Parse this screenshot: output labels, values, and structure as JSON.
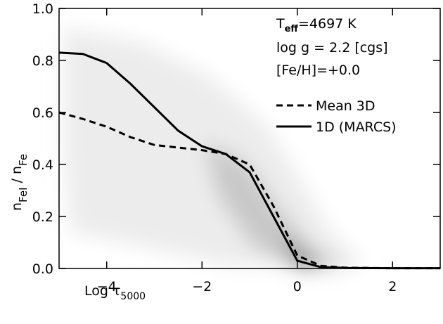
{
  "chart_data": {
    "type": "line",
    "xlabel": "Log τ",
    "xlabel_sub": "5000",
    "ylabel": "n",
    "ylabel_sub1": "FeI",
    "ylabel_mid": " / n",
    "ylabel_sub2": "Fe",
    "annotations": {
      "teff_main": "T",
      "teff_sub": "eff",
      "teff_rest": "=4697 K",
      "logg": "log g = 2.2 [cgs]",
      "feh": "[Fe/H]=+0.0"
    },
    "x": [
      -5,
      -4.5,
      -4,
      -3.5,
      -3,
      -2.5,
      -2,
      -1.5,
      -1,
      -0.5,
      0,
      0.5,
      1,
      2,
      3
    ],
    "series": [
      {
        "name": "Mean 3D",
        "color": "#000000",
        "linestyle": "dashed",
        "values": [
          0.6,
          0.575,
          0.545,
          0.505,
          0.475,
          0.465,
          0.455,
          0.44,
          0.4,
          0.24,
          0.05,
          0.01,
          0.003,
          0.001,
          0.001
        ]
      },
      {
        "name": "1D (MARCS)",
        "color": "#000000",
        "linestyle": "solid",
        "values": [
          0.83,
          0.825,
          0.79,
          0.71,
          0.62,
          0.53,
          0.47,
          0.44,
          0.37,
          0.2,
          0.03,
          0.005,
          0.002,
          0.001,
          0.001
        ]
      }
    ],
    "xlim": [
      -5,
      3
    ],
    "xticks": [
      -4,
      -2,
      0,
      2
    ],
    "ylim": [
      0,
      1
    ],
    "yticks": [
      {
        "value": 0,
        "label": "0.0"
      },
      0.2,
      0.4,
      0.6,
      0.8,
      {
        "value": 1,
        "label": "1.0"
      }
    ]
  }
}
